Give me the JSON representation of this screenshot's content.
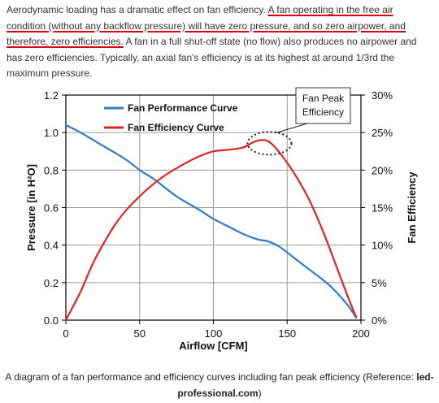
{
  "intro": {
    "part1": "Aerodynamic loading has a dramatic effect on fan efficiency. ",
    "part2": "A fan operating in the free air condition (without any backflow pressure) will have zero pressure, and so zero airpower, and therefore, zero efficiencies.",
    "part3": " A fan in a full shut-off state (no flow) also produces no airpower and has zero efficiencies. Typically, an axial fan's efficiency is at its highest at around 1/3rd the maximum pressure."
  },
  "caption": {
    "text": "A diagram of a fan performance and efficiency curves including fan peak efficiency (Reference: ",
    "ref": "led-professional.com",
    "close": ")"
  },
  "chart_data": {
    "type": "line",
    "xlabel": "Airflow [CFM]",
    "ylabel": "Pressure [in H²O]",
    "y2label": "Fan Efficiency",
    "xlim": [
      0,
      200
    ],
    "ylim": [
      0,
      1.2
    ],
    "y2lim": [
      0,
      30
    ],
    "x_ticks": [
      "0",
      "50",
      "100",
      "150",
      "200"
    ],
    "y_ticks": [
      "0.0",
      "0.2",
      "0.4",
      "0.6",
      "0.8",
      "1.0",
      "1.2"
    ],
    "y2_ticks": [
      "0%",
      "5%",
      "10%",
      "15%",
      "20%",
      "25%",
      "30%"
    ],
    "grid": true,
    "legend": "top-left",
    "series": [
      {
        "name": "Fan Performance Curve",
        "axis": "left",
        "color": "#2f7bc8",
        "x": [
          0,
          10,
          25,
          40,
          50,
          60,
          75,
          90,
          100,
          110,
          120,
          130,
          137,
          145,
          155,
          165,
          178,
          190,
          197
        ],
        "y": [
          1.04,
          1.0,
          0.93,
          0.86,
          0.8,
          0.75,
          0.66,
          0.59,
          0.54,
          0.5,
          0.46,
          0.43,
          0.42,
          0.39,
          0.33,
          0.27,
          0.19,
          0.09,
          0.01
        ]
      },
      {
        "name": "Fan Efficiency Curve",
        "axis": "right",
        "color": "#e02424",
        "x": [
          0,
          10,
          20,
          35,
          50,
          65,
          80,
          90,
          100,
          110,
          120,
          128,
          135,
          140,
          145,
          155,
          165,
          175,
          185,
          192,
          197
        ],
        "y": [
          0,
          3.8,
          8.2,
          13.2,
          16.5,
          19.0,
          20.8,
          21.8,
          22.5,
          22.7,
          23.0,
          23.8,
          24.0,
          23.4,
          22.3,
          19.5,
          16.0,
          11.5,
          6.3,
          2.7,
          0.3
        ]
      }
    ],
    "annotations": [
      {
        "text": "Fan Peak Efficiency",
        "target_x": 138,
        "target_y2": 24.0
      }
    ]
  }
}
